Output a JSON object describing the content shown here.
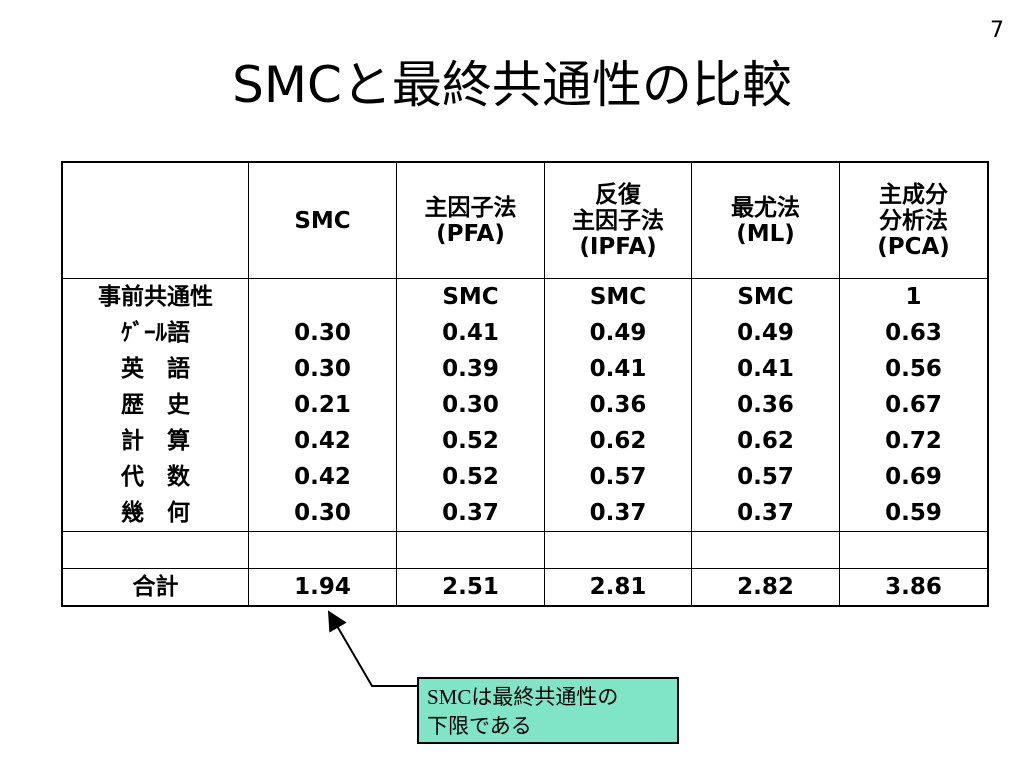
{
  "page_number": "7",
  "title": "SMCと最終共通性の比較",
  "table": {
    "header": [
      null,
      [
        "SMC"
      ],
      [
        "主因子法",
        "(PFA)"
      ],
      [
        "反復",
        "主因子法",
        "(IPFA)"
      ],
      [
        "最尤法",
        "(ML)"
      ],
      [
        "主成分",
        "分析法",
        "(PCA)"
      ]
    ],
    "rows": [
      [
        "事前共通性",
        null,
        "SMC",
        "SMC",
        "SMC",
        "1"
      ],
      [
        "ｹﾞｰﾙ語",
        "0.30",
        "0.41",
        "0.49",
        "0.49",
        "0.63"
      ],
      [
        "英　語",
        "0.30",
        "0.39",
        "0.41",
        "0.41",
        "0.56"
      ],
      [
        "歴　史",
        "0.21",
        "0.30",
        "0.36",
        "0.36",
        "0.67"
      ],
      [
        "計　算",
        "0.42",
        "0.52",
        "0.62",
        "0.62",
        "0.72"
      ],
      [
        "代　数",
        "0.42",
        "0.52",
        "0.57",
        "0.57",
        "0.69"
      ],
      [
        "幾　何",
        "0.30",
        "0.37",
        "0.37",
        "0.37",
        "0.59"
      ],
      [
        null,
        null,
        null,
        null,
        null,
        null
      ],
      [
        "合計",
        "1.94",
        "2.51",
        "2.81",
        "2.82",
        "3.86"
      ]
    ]
  },
  "callout": [
    "SMCは最終共通性の",
    "下限である"
  ]
}
